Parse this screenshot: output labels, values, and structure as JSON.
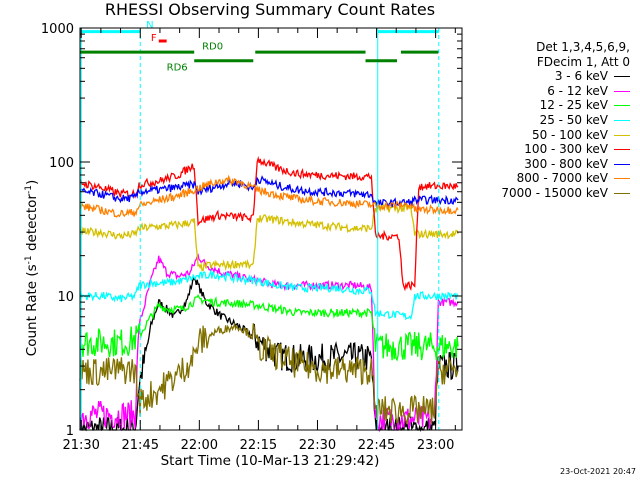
{
  "chart_data": {
    "type": "line",
    "title": "RHESSI Observing Summary Count Rates",
    "xlabel": "Start Time (10-Mar-13 21:29:42)",
    "ylabel_main": "Count Rate (s",
    "ylabel_sup1": "-1",
    "ylabel_mid": " detector",
    "ylabel_sup2": "-1",
    "ylabel_end": ")",
    "yscale": "log",
    "ylim": [
      1,
      1000
    ],
    "xlim_minutes": [
      0,
      97
    ],
    "x_ticks": [
      {
        "t": 0.3,
        "label": "21:30"
      },
      {
        "t": 15.3,
        "label": "21:45"
      },
      {
        "t": 30.3,
        "label": "22:00"
      },
      {
        "t": 45.3,
        "label": "22:15"
      },
      {
        "t": 60.3,
        "label": "22:30"
      },
      {
        "t": 75.3,
        "label": "22:45"
      },
      {
        "t": 90.3,
        "label": "23:00"
      }
    ],
    "y_ticks": [
      {
        "v": 1,
        "label": "1"
      },
      {
        "v": 10,
        "label": "10"
      },
      {
        "v": 100,
        "label": "100"
      },
      {
        "v": 1000,
        "label": "1000"
      }
    ],
    "legend": {
      "header": [
        "Det 1,3,4,5,6,9,",
        "FDecim 1, Att 0"
      ],
      "entries": [
        {
          "label": "3 - 6 keV",
          "color": "#000000"
        },
        {
          "label": "6 - 12 keV",
          "color": "#ff00ff"
        },
        {
          "label": "12 - 25 keV",
          "color": "#00ff00"
        },
        {
          "label": "25 - 50 keV",
          "color": "#00ffff"
        },
        {
          "label": "50 - 100 keV",
          "color": "#d4c000"
        },
        {
          "label": "100 - 300 keV",
          "color": "#ff0000"
        },
        {
          "label": "300 - 800 keV",
          "color": "#0000ff"
        },
        {
          "label": "800 - 7000 keV",
          "color": "#ff8000"
        },
        {
          "label": "7000 - 15000 keV",
          "color": "#807000"
        }
      ]
    },
    "series": [
      {
        "name": "3 - 6 keV",
        "color": "#000000",
        "points": [
          [
            0,
            1
          ],
          [
            14,
            1
          ],
          [
            15,
            2.2
          ],
          [
            17,
            4
          ],
          [
            18,
            6
          ],
          [
            20,
            9
          ],
          [
            22,
            8
          ],
          [
            24,
            7
          ],
          [
            27,
            9
          ],
          [
            29,
            14
          ],
          [
            30,
            12
          ],
          [
            32,
            9
          ],
          [
            36,
            7
          ],
          [
            40,
            6
          ],
          [
            44,
            5
          ],
          [
            47,
            4.2
          ],
          [
            50,
            3.6
          ],
          [
            55,
            3.4
          ],
          [
            60,
            3.4
          ],
          [
            65,
            3.5
          ],
          [
            70,
            3.5
          ],
          [
            74,
            3.4
          ],
          [
            75,
            1
          ],
          [
            90,
            1
          ],
          [
            91,
            3
          ],
          [
            96,
            3
          ]
        ]
      },
      {
        "name": "6 - 12 keV",
        "color": "#ff00ff",
        "points": [
          [
            0,
            1.3
          ],
          [
            14,
            1.3
          ],
          [
            15,
            6
          ],
          [
            18,
            13
          ],
          [
            20,
            19
          ],
          [
            22,
            15
          ],
          [
            25,
            14
          ],
          [
            28,
            15
          ],
          [
            30,
            20
          ],
          [
            32,
            17
          ],
          [
            36,
            15
          ],
          [
            40,
            14
          ],
          [
            45,
            13
          ],
          [
            50,
            12
          ],
          [
            55,
            12
          ],
          [
            60,
            12
          ],
          [
            65,
            12
          ],
          [
            70,
            12
          ],
          [
            74,
            11.5
          ],
          [
            75,
            1.2
          ],
          [
            90,
            1.2
          ],
          [
            91,
            9
          ],
          [
            96,
            9
          ]
        ]
      },
      {
        "name": "12 - 25 keV",
        "color": "#00ff00",
        "points": [
          [
            0,
            4.5
          ],
          [
            12,
            4.5
          ],
          [
            15,
            5
          ],
          [
            18,
            7
          ],
          [
            20,
            8.5
          ],
          [
            22,
            8
          ],
          [
            26,
            8
          ],
          [
            30,
            9.5
          ],
          [
            34,
            9
          ],
          [
            40,
            8.8
          ],
          [
            45,
            8.5
          ],
          [
            50,
            8
          ],
          [
            55,
            7.5
          ],
          [
            60,
            7.5
          ],
          [
            65,
            7.5
          ],
          [
            70,
            7.5
          ],
          [
            74,
            7.5
          ],
          [
            75,
            4.2
          ],
          [
            96,
            4.2
          ]
        ]
      },
      {
        "name": "25 - 50 keV",
        "color": "#00ffff",
        "points": [
          [
            0,
            10
          ],
          [
            6,
            10
          ],
          [
            10,
            9.5
          ],
          [
            14,
            10
          ],
          [
            15,
            12
          ],
          [
            18,
            12.5
          ],
          [
            22,
            12.5
          ],
          [
            26,
            13
          ],
          [
            30,
            14
          ],
          [
            34,
            14.5
          ],
          [
            40,
            13.5
          ],
          [
            45,
            13
          ],
          [
            50,
            12
          ],
          [
            55,
            11.5
          ],
          [
            60,
            11.5
          ],
          [
            65,
            11.5
          ],
          [
            70,
            11
          ],
          [
            74,
            11
          ],
          [
            75,
            7.5
          ],
          [
            84,
            7
          ],
          [
            85,
            10
          ],
          [
            96,
            10
          ]
        ]
      },
      {
        "name": "50 - 100 keV",
        "color": "#d4c000",
        "points": [
          [
            0,
            30
          ],
          [
            5,
            30
          ],
          [
            10,
            28
          ],
          [
            14,
            29
          ],
          [
            15,
            32
          ],
          [
            20,
            33
          ],
          [
            25,
            34
          ],
          [
            29,
            36
          ],
          [
            30,
            16
          ],
          [
            33,
            17
          ],
          [
            37,
            17
          ],
          [
            41,
            17.5
          ],
          [
            44,
            16.5
          ],
          [
            45,
            38
          ],
          [
            50,
            37
          ],
          [
            55,
            35
          ],
          [
            60,
            34
          ],
          [
            65,
            33
          ],
          [
            70,
            32
          ],
          [
            74,
            32
          ],
          [
            75,
            45
          ],
          [
            84,
            45
          ],
          [
            85,
            29
          ],
          [
            96,
            29
          ]
        ]
      },
      {
        "name": "100 - 300 keV",
        "color": "#ff0000",
        "points": [
          [
            0,
            70
          ],
          [
            5,
            65
          ],
          [
            10,
            58
          ],
          [
            14,
            58
          ],
          [
            15,
            68
          ],
          [
            20,
            72
          ],
          [
            25,
            80
          ],
          [
            29,
            95
          ],
          [
            30,
            36
          ],
          [
            35,
            40
          ],
          [
            40,
            39
          ],
          [
            44,
            38
          ],
          [
            45,
            105
          ],
          [
            50,
            90
          ],
          [
            55,
            82
          ],
          [
            60,
            80
          ],
          [
            65,
            79
          ],
          [
            70,
            78
          ],
          [
            74,
            78
          ],
          [
            75,
            28
          ],
          [
            81,
            28
          ],
          [
            82,
            12
          ],
          [
            85,
            12
          ],
          [
            86,
            66
          ],
          [
            96,
            66
          ]
        ]
      },
      {
        "name": "300 - 800 keV",
        "color": "#0000ff",
        "points": [
          [
            0,
            60
          ],
          [
            5,
            58
          ],
          [
            10,
            53
          ],
          [
            14,
            54
          ],
          [
            15,
            60
          ],
          [
            20,
            62
          ],
          [
            25,
            65
          ],
          [
            29,
            68
          ],
          [
            30,
            60
          ],
          [
            35,
            66
          ],
          [
            38,
            70
          ],
          [
            41,
            69
          ],
          [
            44,
            63
          ],
          [
            45,
            75
          ],
          [
            50,
            67
          ],
          [
            55,
            62
          ],
          [
            60,
            60
          ],
          [
            65,
            59
          ],
          [
            70,
            58
          ],
          [
            74,
            57
          ],
          [
            75,
            49
          ],
          [
            84,
            50
          ],
          [
            85,
            52
          ],
          [
            96,
            52
          ]
        ]
      },
      {
        "name": "800 - 7000 keV",
        "color": "#ff8000",
        "points": [
          [
            0,
            47
          ],
          [
            5,
            44
          ],
          [
            10,
            41
          ],
          [
            14,
            42
          ],
          [
            15,
            47
          ],
          [
            20,
            52
          ],
          [
            25,
            56
          ],
          [
            29,
            62
          ],
          [
            32,
            67
          ],
          [
            36,
            73
          ],
          [
            40,
            72
          ],
          [
            43,
            66
          ],
          [
            45,
            62
          ],
          [
            50,
            57
          ],
          [
            55,
            53
          ],
          [
            60,
            51
          ],
          [
            65,
            50
          ],
          [
            70,
            49
          ],
          [
            74,
            48
          ],
          [
            75,
            47
          ],
          [
            84,
            48
          ],
          [
            85,
            44
          ],
          [
            96,
            44
          ]
        ]
      },
      {
        "name": "7000 - 15000 keV",
        "color": "#807000",
        "points": [
          [
            0,
            2.8
          ],
          [
            5,
            2.7
          ],
          [
            10,
            2.8
          ],
          [
            14,
            2.8
          ],
          [
            15,
            1.6
          ],
          [
            20,
            2
          ],
          [
            25,
            2.6
          ],
          [
            29,
            3.5
          ],
          [
            30,
            4.5
          ],
          [
            35,
            5.5
          ],
          [
            40,
            6
          ],
          [
            44,
            5
          ],
          [
            45,
            4.2
          ],
          [
            50,
            3.6
          ],
          [
            55,
            3.1
          ],
          [
            60,
            2.9
          ],
          [
            65,
            2.8
          ],
          [
            70,
            2.8
          ],
          [
            74,
            2.8
          ],
          [
            75,
            1.4
          ],
          [
            90,
            1.4
          ],
          [
            91,
            2.8
          ],
          [
            96,
            2.8
          ]
        ]
      }
    ],
    "vertical_lines": [
      {
        "t": 0.3,
        "style": "solid",
        "color": "#00ffff"
      },
      {
        "t": 15.3,
        "style": "dashed",
        "color": "#00ffff"
      },
      {
        "t": 75.6,
        "style": "solid",
        "color": "#00ffff"
      },
      {
        "t": 91.1,
        "style": "dashed",
        "color": "#00ffff"
      }
    ],
    "flag_bars": {
      "N": {
        "label": "N",
        "color": "#00ffff",
        "segments": [
          [
            0.3,
            15.3
          ],
          [
            75.6,
            91.1
          ]
        ],
        "level": 940
      },
      "F": {
        "label": "F",
        "color": "#ff0000",
        "segments": [
          [
            20,
            22
          ]
        ],
        "level": 800
      },
      "RD0": {
        "label": "RD0",
        "color": "#008000",
        "segments": [
          [
            0,
            29
          ],
          [
            44.5,
            72.5
          ],
          [
            81.5,
            91
          ]
        ],
        "level": 660
      },
      "RD6": {
        "label": "RD6",
        "color": "#008000",
        "segments": [
          [
            29,
            44
          ],
          [
            72.5,
            80.5
          ]
        ],
        "level": 570
      }
    },
    "stamp": "23-Oct-2021 20:47"
  }
}
